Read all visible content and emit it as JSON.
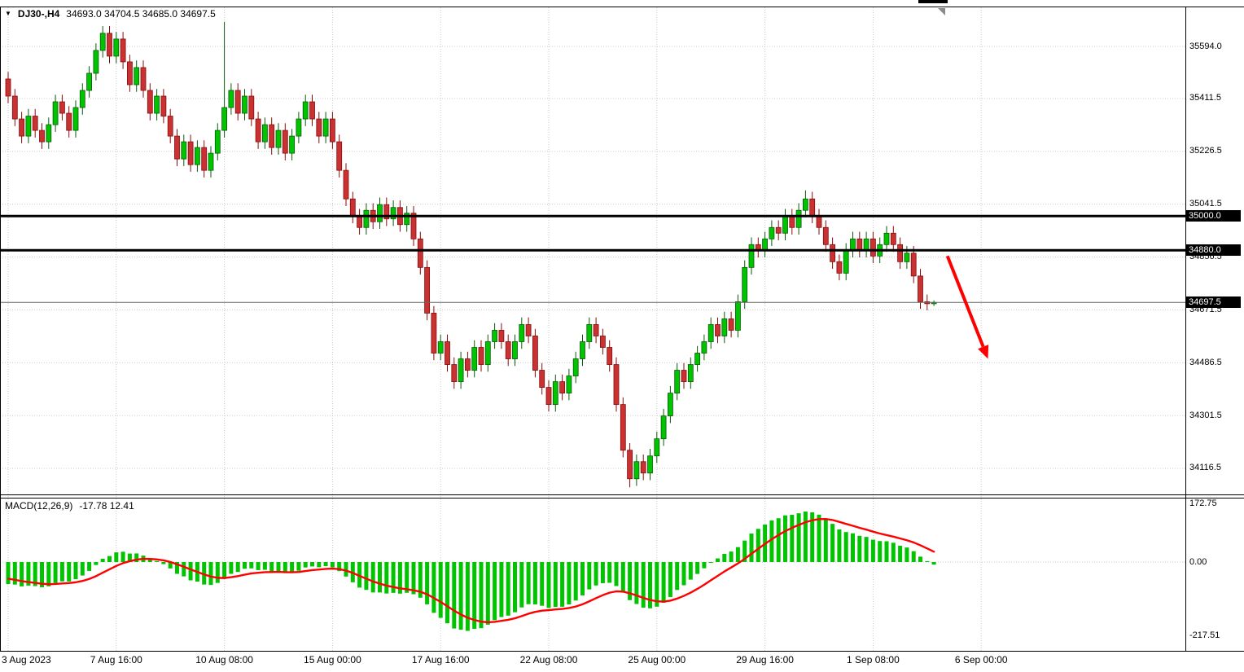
{
  "header": {
    "dropdown_icon": "▼",
    "symbol": "DJ30-,H4",
    "ohlc_values": "34693.0 34704.5 34685.0 34697.5"
  },
  "indicator": {
    "label": "MACD(12,26,9)",
    "values": "-17.78 12.41"
  },
  "colors": {
    "up_candle": "#00C400",
    "down_candle": "#C83232",
    "up_wick": "#0A5A0A",
    "down_wick": "#8A0A0A",
    "macd_histogram": "#00C400",
    "macd_signal": "#FF0000",
    "level_line": "#000000",
    "current_price_line": "#666666",
    "arrow": "#FF0000",
    "badge_bg": "#000000",
    "badge_text": "#FFFFFF",
    "grid": "#C9C9C9"
  },
  "price_axis": {
    "grid_labels": [
      "35594.0",
      "35411.5",
      "35226.5",
      "35041.5",
      "34856.5",
      "34671.5",
      "34486.5",
      "34301.5",
      "34116.5"
    ],
    "level_badges": [
      "35000.0",
      "34880.0"
    ],
    "current_price_badge": "34697.5"
  },
  "time_axis": {
    "ticks": [
      {
        "index": 0,
        "label": "3 Aug 2023"
      },
      {
        "index": 16,
        "label": "7 Aug 16:00"
      },
      {
        "index": 32,
        "label": "10 Aug 08:00"
      },
      {
        "index": 48,
        "label": "15 Aug 00:00"
      },
      {
        "index": 64,
        "label": "17 Aug 16:00"
      },
      {
        "index": 80,
        "label": "22 Aug 08:00"
      },
      {
        "index": 96,
        "label": "25 Aug 00:00"
      },
      {
        "index": 112,
        "label": "29 Aug 16:00"
      },
      {
        "index": 128,
        "label": "1 Sep 08:00"
      },
      {
        "index": 144,
        "label": "6 Sep 00:00"
      }
    ]
  },
  "macd_axis": {
    "labels": [
      "172.75",
      "0.00",
      "-217.51"
    ]
  },
  "chart_data": [
    {
      "type": "candlestick",
      "symbol": "DJ30-",
      "timeframe": "H4",
      "title": "DJ30-,H4 34693.0 34704.5 34685.0 34697.5",
      "last_bar": {
        "open": 34693.0,
        "high": 34704.5,
        "low": 34685.0,
        "close": 34697.5
      },
      "current_price": 34697.5,
      "horizontal_levels": [
        35000.0,
        34880.0
      ],
      "ylim": [
        34022,
        35733
      ],
      "grid_step": 185,
      "annotations": [
        {
          "type": "arrow",
          "from_bar": 139,
          "from_price": 34860,
          "to_bar": 145,
          "to_price": 34500,
          "color": "#FF0000"
        }
      ],
      "candles": [
        [
          35480,
          35505,
          35395,
          35420
        ],
        [
          35420,
          35445,
          35315,
          35340
        ],
        [
          35340,
          35365,
          35255,
          35280
        ],
        [
          35280,
          35375,
          35255,
          35350
        ],
        [
          35350,
          35375,
          35275,
          35300
        ],
        [
          35300,
          35325,
          35235,
          35260
        ],
        [
          35260,
          35345,
          35235,
          35320
        ],
        [
          35320,
          35425,
          35295,
          35400
        ],
        [
          35400,
          35425,
          35335,
          35360
        ],
        [
          35360,
          35385,
          35275,
          35300
        ],
        [
          35300,
          35405,
          35275,
          35380
        ],
        [
          35380,
          35465,
          35355,
          35440
        ],
        [
          35440,
          35525,
          35415,
          35500
        ],
        [
          35500,
          35605,
          35475,
          35580
        ],
        [
          35580,
          35665,
          35555,
          35640
        ],
        [
          35640,
          35665,
          35535,
          35560
        ],
        [
          35560,
          35645,
          35535,
          35620
        ],
        [
          35620,
          35645,
          35515,
          35540
        ],
        [
          35540,
          35565,
          35435,
          35460
        ],
        [
          35460,
          35545,
          35435,
          35520
        ],
        [
          35520,
          35545,
          35415,
          35440
        ],
        [
          35440,
          35465,
          35335,
          35360
        ],
        [
          35360,
          35445,
          35335,
          35420
        ],
        [
          35420,
          35445,
          35325,
          35350
        ],
        [
          35350,
          35375,
          35255,
          35280
        ],
        [
          35280,
          35305,
          35175,
          35200
        ],
        [
          35200,
          35285,
          35175,
          35260
        ],
        [
          35260,
          35285,
          35155,
          35180
        ],
        [
          35180,
          35265,
          35155,
          35240
        ],
        [
          35240,
          35265,
          35135,
          35160
        ],
        [
          35160,
          35245,
          35135,
          35220
        ],
        [
          35220,
          35325,
          35195,
          35300
        ],
        [
          35300,
          35680,
          35275,
          35380
        ],
        [
          35380,
          35465,
          35355,
          35440
        ],
        [
          35440,
          35465,
          35335,
          35360
        ],
        [
          35360,
          35445,
          35335,
          35420
        ],
        [
          35420,
          35445,
          35315,
          35340
        ],
        [
          35340,
          35365,
          35235,
          35260
        ],
        [
          35260,
          35345,
          35235,
          35320
        ],
        [
          35320,
          35345,
          35215,
          35240
        ],
        [
          35240,
          35325,
          35215,
          35300
        ],
        [
          35300,
          35325,
          35195,
          35220
        ],
        [
          35220,
          35305,
          35195,
          35280
        ],
        [
          35280,
          35365,
          35255,
          35340
        ],
        [
          35340,
          35425,
          35315,
          35400
        ],
        [
          35400,
          35425,
          35315,
          35340
        ],
        [
          35340,
          35365,
          35255,
          35280
        ],
        [
          35280,
          35365,
          35255,
          35340
        ],
        [
          35340,
          35365,
          35235,
          35260
        ],
        [
          35260,
          35285,
          35135,
          35160
        ],
        [
          35160,
          35185,
          35035,
          35060
        ],
        [
          35060,
          35085,
          34975,
          35000
        ],
        [
          35000,
          35025,
          34935,
          34960
        ],
        [
          34960,
          35045,
          34935,
          35020
        ],
        [
          35020,
          35045,
          34955,
          34980
        ],
        [
          34980,
          35065,
          34955,
          35040
        ],
        [
          35040,
          35065,
          34965,
          34990
        ],
        [
          34990,
          35055,
          34965,
          35030
        ],
        [
          35030,
          35055,
          34945,
          34970
        ],
        [
          34970,
          35035,
          34945,
          35010
        ],
        [
          35010,
          35035,
          34895,
          34920
        ],
        [
          34920,
          34945,
          34795,
          34820
        ],
        [
          34820,
          34845,
          34635,
          34660
        ],
        [
          34660,
          34685,
          34495,
          34520
        ],
        [
          34520,
          34585,
          34495,
          34560
        ],
        [
          34560,
          34585,
          34455,
          34480
        ],
        [
          34480,
          34505,
          34395,
          34420
        ],
        [
          34420,
          34525,
          34395,
          34500
        ],
        [
          34500,
          34525,
          34435,
          34460
        ],
        [
          34460,
          34565,
          34435,
          34540
        ],
        [
          34540,
          34565,
          34455,
          34480
        ],
        [
          34480,
          34585,
          34455,
          34560
        ],
        [
          34560,
          34625,
          34535,
          34600
        ],
        [
          34600,
          34625,
          34535,
          34560
        ],
        [
          34560,
          34585,
          34475,
          34500
        ],
        [
          34500,
          34585,
          34475,
          34560
        ],
        [
          34560,
          34645,
          34535,
          34620
        ],
        [
          34620,
          34645,
          34555,
          34580
        ],
        [
          34580,
          34605,
          34435,
          34460
        ],
        [
          34460,
          34485,
          34375,
          34400
        ],
        [
          34400,
          34425,
          34315,
          34340
        ],
        [
          34340,
          34445,
          34315,
          34420
        ],
        [
          34420,
          34445,
          34355,
          34380
        ],
        [
          34380,
          34465,
          34355,
          34440
        ],
        [
          34440,
          34525,
          34415,
          34500
        ],
        [
          34500,
          34585,
          34475,
          34560
        ],
        [
          34560,
          34645,
          34535,
          34620
        ],
        [
          34620,
          34645,
          34555,
          34580
        ],
        [
          34580,
          34605,
          34515,
          34540
        ],
        [
          34540,
          34565,
          34455,
          34480
        ],
        [
          34480,
          34505,
          34315,
          34340
        ],
        [
          34340,
          34365,
          34155,
          34180
        ],
        [
          34180,
          34205,
          34050,
          34080
        ],
        [
          34080,
          34165,
          34055,
          34140
        ],
        [
          34140,
          34165,
          34075,
          34100
        ],
        [
          34100,
          34185,
          34075,
          34160
        ],
        [
          34160,
          34245,
          34135,
          34220
        ],
        [
          34220,
          34325,
          34195,
          34300
        ],
        [
          34300,
          34405,
          34275,
          34380
        ],
        [
          34380,
          34485,
          34355,
          34460
        ],
        [
          34460,
          34485,
          34395,
          34420
        ],
        [
          34420,
          34505,
          34395,
          34480
        ],
        [
          34480,
          34545,
          34455,
          34520
        ],
        [
          34520,
          34585,
          34495,
          34560
        ],
        [
          34560,
          34645,
          34535,
          34620
        ],
        [
          34620,
          34645,
          34555,
          34580
        ],
        [
          34580,
          34665,
          34555,
          34640
        ],
        [
          34640,
          34665,
          34575,
          34600
        ],
        [
          34600,
          34725,
          34575,
          34700
        ],
        [
          34700,
          34845,
          34675,
          34820
        ],
        [
          34820,
          34925,
          34795,
          34900
        ],
        [
          34900,
          34925,
          34855,
          34880
        ],
        [
          34880,
          34945,
          34855,
          34920
        ],
        [
          34920,
          34985,
          34895,
          34960
        ],
        [
          34960,
          34985,
          34915,
          34940
        ],
        [
          34940,
          35025,
          34915,
          35000
        ],
        [
          35000,
          35025,
          34935,
          34960
        ],
        [
          34960,
          35045,
          34935,
          35020
        ],
        [
          35020,
          35090,
          34995,
          35060
        ],
        [
          35060,
          35085,
          34975,
          35000
        ],
        [
          35000,
          35025,
          34935,
          34960
        ],
        [
          34960,
          34985,
          34875,
          34900
        ],
        [
          34900,
          34925,
          34815,
          34840
        ],
        [
          34840,
          34865,
          34775,
          34800
        ],
        [
          34800,
          34905,
          34775,
          34880
        ],
        [
          34880,
          34945,
          34855,
          34920
        ],
        [
          34920,
          34945,
          34855,
          34880
        ],
        [
          34880,
          34945,
          34855,
          34920
        ],
        [
          34920,
          34945,
          34835,
          34860
        ],
        [
          34860,
          34925,
          34835,
          34900
        ],
        [
          34900,
          34965,
          34875,
          34940
        ],
        [
          34940,
          34965,
          34875,
          34900
        ],
        [
          34900,
          34925,
          34815,
          34840
        ],
        [
          34840,
          34895,
          34815,
          34870
        ],
        [
          34870,
          34895,
          34765,
          34790
        ],
        [
          34790,
          34815,
          34675,
          34700
        ],
        [
          34700,
          34725,
          34670,
          34693
        ],
        [
          34693,
          34704.5,
          34685,
          34697.5
        ]
      ]
    },
    {
      "type": "macd_indicator",
      "label": "MACD(12,26,9)",
      "params": {
        "fast": 12,
        "slow": 26,
        "signal": 9
      },
      "main_value": -17.78,
      "signal_value": 12.41,
      "axis_range": [
        -217.51,
        172.75
      ]
    }
  ]
}
